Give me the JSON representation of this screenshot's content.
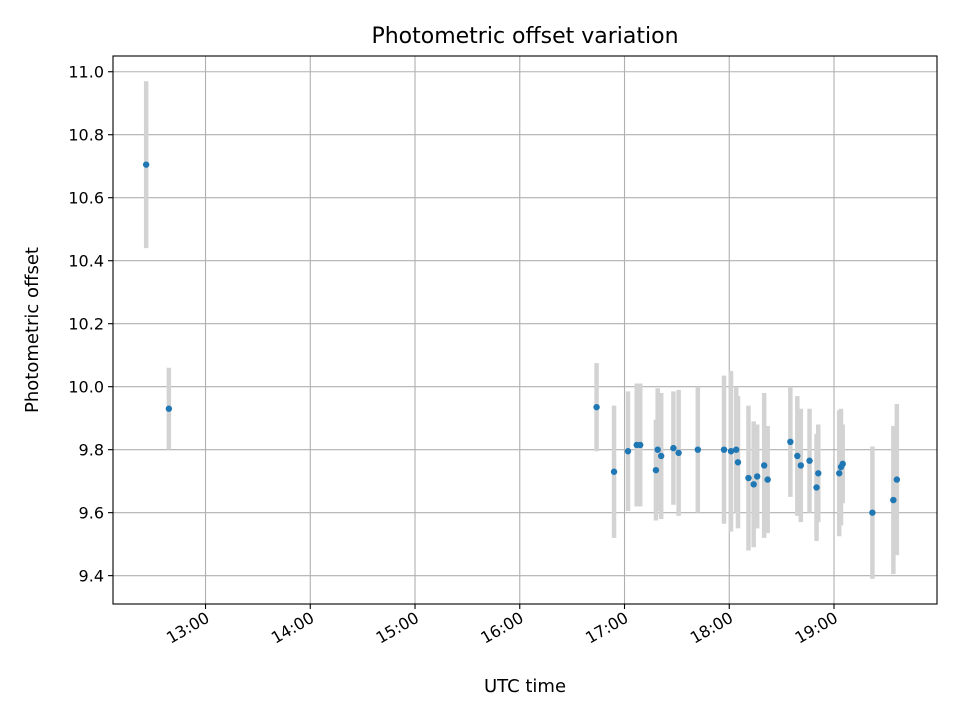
{
  "chart_data": {
    "type": "scatter",
    "title": "Photometric offset variation",
    "xlabel": "UTC time",
    "ylabel": "Photometric offset",
    "x_unit": "UTC time (hh:mm)",
    "xlim": [
      "12:07",
      "19:59"
    ],
    "ylim": [
      9.31,
      11.05
    ],
    "x_ticks": [
      "13:00",
      "14:00",
      "15:00",
      "16:00",
      "17:00",
      "18:00",
      "19:00"
    ],
    "y_ticks": [
      "9.4",
      "9.6",
      "9.8",
      "10.0",
      "10.2",
      "10.4",
      "10.6",
      "10.8",
      "11.0"
    ],
    "grid": true,
    "legend": "none",
    "colors": {
      "points": "#1f77b4",
      "error_bars": "#d3d3d3",
      "grid": "#b0b0b0"
    },
    "series": [
      {
        "points": [
          {
            "x": "12:26",
            "y": 10.705,
            "err": 0.265
          },
          {
            "x": "12:39",
            "y": 9.93,
            "err": 0.13
          },
          {
            "x": "16:44",
            "y": 9.935,
            "err": 0.14
          },
          {
            "x": "16:54",
            "y": 9.73,
            "err": 0.21
          },
          {
            "x": "17:02",
            "y": 9.795,
            "err": 0.19
          },
          {
            "x": "17:07",
            "y": 9.815,
            "err": 0.195
          },
          {
            "x": "17:09",
            "y": 9.815,
            "err": 0.195
          },
          {
            "x": "17:18",
            "y": 9.735,
            "err": 0.16
          },
          {
            "x": "17:19",
            "y": 9.8,
            "err": 0.195
          },
          {
            "x": "17:21",
            "y": 9.78,
            "err": 0.2
          },
          {
            "x": "17:28",
            "y": 9.805,
            "err": 0.18
          },
          {
            "x": "17:31",
            "y": 9.79,
            "err": 0.2
          },
          {
            "x": "17:42",
            "y": 9.8,
            "err": 0.2
          },
          {
            "x": "17:57",
            "y": 9.8,
            "err": 0.235
          },
          {
            "x": "18:01",
            "y": 9.795,
            "err": 0.255
          },
          {
            "x": "18:04",
            "y": 9.8,
            "err": 0.2
          },
          {
            "x": "18:05",
            "y": 9.76,
            "err": 0.21
          },
          {
            "x": "18:11",
            "y": 9.71,
            "err": 0.23
          },
          {
            "x": "18:14",
            "y": 9.69,
            "err": 0.2
          },
          {
            "x": "18:16",
            "y": 9.715,
            "err": 0.165
          },
          {
            "x": "18:20",
            "y": 9.75,
            "err": 0.23
          },
          {
            "x": "18:22",
            "y": 9.705,
            "err": 0.17
          },
          {
            "x": "18:35",
            "y": 9.825,
            "err": 0.175
          },
          {
            "x": "18:39",
            "y": 9.78,
            "err": 0.19
          },
          {
            "x": "18:41",
            "y": 9.75,
            "err": 0.18
          },
          {
            "x": "18:46",
            "y": 9.765,
            "err": 0.165
          },
          {
            "x": "18:50",
            "y": 9.68,
            "err": 0.17
          },
          {
            "x": "18:51",
            "y": 9.725,
            "err": 0.155
          },
          {
            "x": "19:03",
            "y": 9.725,
            "err": 0.2
          },
          {
            "x": "19:04",
            "y": 9.745,
            "err": 0.185
          },
          {
            "x": "19:05",
            "y": 9.755,
            "err": 0.125
          },
          {
            "x": "19:22",
            "y": 9.6,
            "err": 0.21
          },
          {
            "x": "19:34",
            "y": 9.64,
            "err": 0.235
          },
          {
            "x": "19:36",
            "y": 9.705,
            "err": 0.24
          }
        ]
      }
    ]
  }
}
